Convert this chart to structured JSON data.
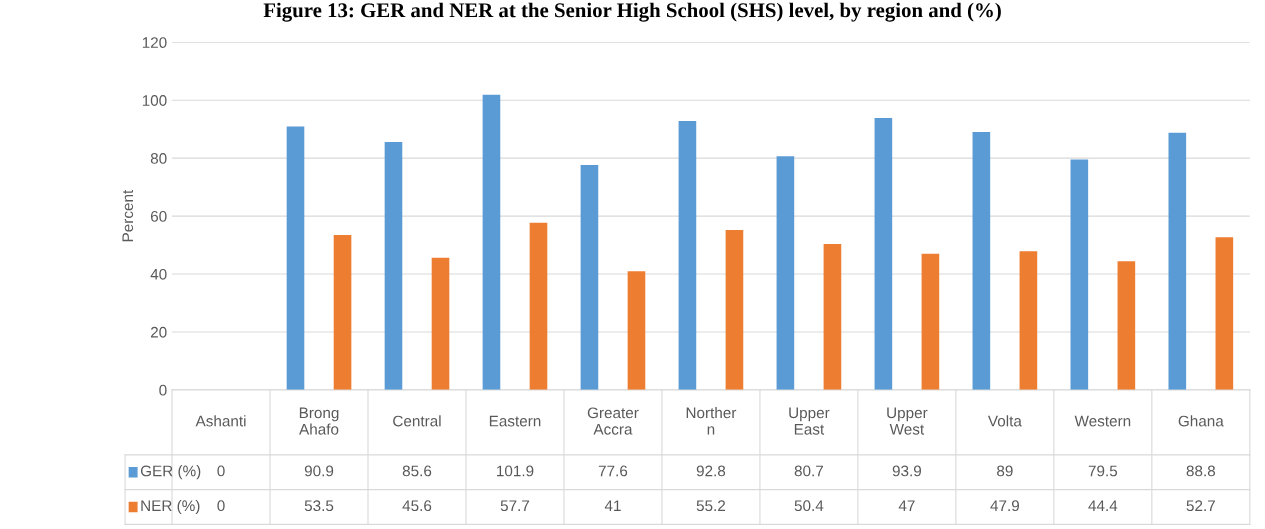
{
  "chart_data": {
    "type": "bar",
    "title": "Figure 13: GER and NER at the Senior High School (SHS) level, by region and (%)",
    "ylabel": "Percent",
    "categories": [
      "Ashanti",
      "Brong\nAhafo",
      "Central",
      "Eastern",
      "Greater\nAccra",
      "Norther\nn",
      "Upper\nEast",
      "Upper\nWest",
      "Volta",
      "Western",
      "Ghana"
    ],
    "series": [
      {
        "name": "GER (%)",
        "color": "#5b9bd5",
        "values": [
          0,
          90.9,
          85.6,
          101.9,
          77.6,
          92.8,
          80.7,
          93.9,
          89,
          79.5,
          88.8
        ]
      },
      {
        "name": "NER (%)",
        "color": "#ed7d31",
        "values": [
          0,
          53.5,
          45.6,
          57.7,
          41,
          55.2,
          50.4,
          47,
          47.9,
          44.4,
          52.7
        ]
      }
    ],
    "ylim": [
      0,
      120
    ],
    "yticks": [
      0,
      20,
      40,
      60,
      80,
      100,
      120
    ],
    "grid": "y",
    "legend": "bottom",
    "data_labels": true
  }
}
